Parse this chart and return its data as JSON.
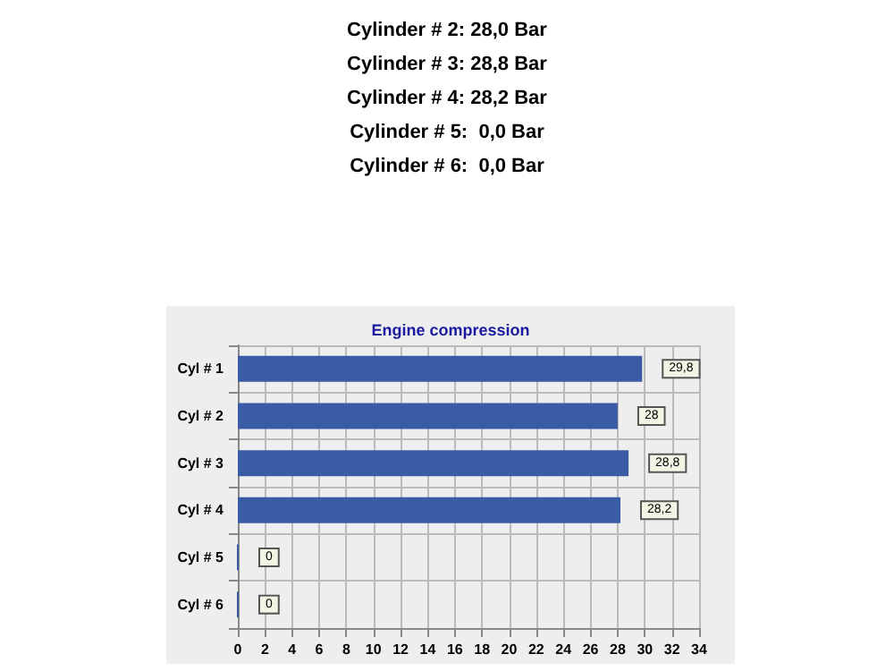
{
  "chart_data": {
    "type": "bar",
    "orientation": "horizontal",
    "title": "Engine compression",
    "annotations": [
      "Cylinder # 2: 28,0 Bar",
      "Cylinder # 3: 28,8 Bar",
      "Cylinder # 4: 28,2 Bar",
      "Cylinder # 5:  0,0 Bar",
      "Cylinder # 6:  0,0 Bar"
    ],
    "categories": [
      "Cyl # 1",
      "Cyl # 2",
      "Cyl # 3",
      "Cyl # 4",
      "Cyl # 5",
      "Cyl # 6"
    ],
    "values": [
      29.8,
      28,
      28.8,
      28.2,
      0,
      0
    ],
    "value_labels": [
      "29,8",
      "28",
      "28,8",
      "28,2",
      "0",
      "0"
    ],
    "color": "#3a5ba5",
    "xlim": [
      0,
      34
    ],
    "xticks": [
      0,
      2,
      4,
      6,
      8,
      10,
      12,
      14,
      16,
      18,
      20,
      22,
      24,
      26,
      28,
      30,
      32,
      34
    ],
    "grid": true
  }
}
